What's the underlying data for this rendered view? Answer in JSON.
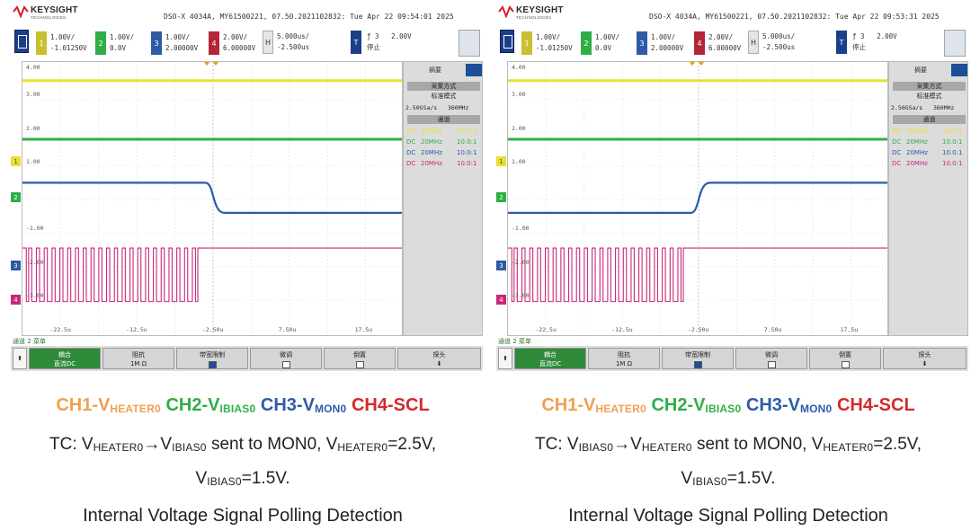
{
  "brand": {
    "name": "KEYSIGHT",
    "sub": "TECHNOLOGIES"
  },
  "colors": {
    "ch1": "#e8e030",
    "ch2": "#2fae48",
    "ch3": "#2e5aa8",
    "ch4": "#c8287a",
    "side_ch1": "#e8e030",
    "cap_ch1": "#f0a050",
    "cap_ch2": "#2fae48",
    "cap_ch3": "#2e5aa8",
    "cap_ch4": "#d42a2a",
    "active_softkey": "#2f8a3a"
  },
  "panels": [
    {
      "model_line": "DSO-X 4034A, MY61500221, 07.50.2021102832: Tue Apr 22 09:54:01 2025",
      "channels": [
        {
          "num": "1",
          "scale": "1.00V/",
          "offset": "-1.01250V"
        },
        {
          "num": "2",
          "scale": "1.00V/",
          "offset": "0.0V"
        },
        {
          "num": "3",
          "scale": "1.00V/",
          "offset": "2.00000V"
        },
        {
          "num": "4",
          "scale": "2.00V/",
          "offset": "6.00000V"
        }
      ],
      "timebase": {
        "label": "H",
        "scale": "5.000us/",
        "delay": "-2.500us"
      },
      "trigger": {
        "label": "T",
        "source": "3",
        "level": "2.00V",
        "status": "停止"
      },
      "y_labels": [
        "4.00",
        "3.00",
        "2.00",
        "1.00",
        "",
        "-1.00",
        "-2.00",
        "-3.00"
      ],
      "x_labels": [
        "-22.5u",
        "-12.5u",
        "-2.50u",
        "7.50u",
        "17.5u"
      ],
      "side": {
        "tab": "摘要",
        "acq_header": "采集方式",
        "acq_mode": "标准模式",
        "rate": "2.50GSa/s",
        "bw": "360MHz",
        "chan_header": "通道",
        "rows": [
          {
            "coupling": "DC",
            "bw": "20MHz",
            "ratio": "10.0:1"
          },
          {
            "coupling": "DC",
            "bw": "20MHz",
            "ratio": "10.0:1"
          },
          {
            "coupling": "DC",
            "bw": "20MHz",
            "ratio": "10.0:1"
          },
          {
            "coupling": "DC",
            "bw": "20MHz",
            "ratio": "10.0:1"
          }
        ]
      },
      "status_text": "通道 2 菜单",
      "softkeys": [
        {
          "l1": "耦合",
          "l2": "直流DC"
        },
        {
          "l1": "阻抗",
          "l2": "1M Ω"
        },
        {
          "l1": "带宽限制",
          "l2": ""
        },
        {
          "l1": "微调",
          "l2": ""
        },
        {
          "l1": "倒置",
          "l2": ""
        },
        {
          "l1": "探头",
          "l2": ""
        }
      ],
      "waves": {
        "ch3_direction": "falling",
        "ch3_high": 0.5,
        "ch3_low": -0.4,
        "ch3_edge_time": -3.5,
        "ch4_burst_start": -27.0,
        "ch4_burst_end": -4.5
      },
      "caption": {
        "tc_line1": [
          "TC: V",
          "HEATER0",
          "→V",
          "IBIAS0",
          " sent to MON0, V",
          "HEATER0",
          "=2.5V,"
        ],
        "tc_line2": [
          "V",
          "IBIAS0",
          "=1.5V."
        ]
      }
    },
    {
      "model_line": "DSO-X 4034A, MY61500221, 07.50.2021102832: Tue Apr 22 09:53:31 2025",
      "channels": [
        {
          "num": "1",
          "scale": "1.00V/",
          "offset": "-1.01250V"
        },
        {
          "num": "2",
          "scale": "1.00V/",
          "offset": "0.0V"
        },
        {
          "num": "3",
          "scale": "1.00V/",
          "offset": "2.00000V"
        },
        {
          "num": "4",
          "scale": "2.00V/",
          "offset": "6.00000V"
        }
      ],
      "timebase": {
        "label": "H",
        "scale": "5.000us/",
        "delay": "-2.500us"
      },
      "trigger": {
        "label": "T",
        "source": "3",
        "level": "2.00V",
        "status": "停止"
      },
      "y_labels": [
        "4.00",
        "3.00",
        "2.00",
        "1.00",
        "",
        "-1.00",
        "-2.00",
        "-3.00"
      ],
      "x_labels": [
        "-22.5u",
        "-12.5u",
        "-2.50u",
        "7.50u",
        "17.5u"
      ],
      "side": {
        "tab": "摘要",
        "acq_header": "采集方式",
        "acq_mode": "标准模式",
        "rate": "2.50GSa/s",
        "bw": "360MHz",
        "chan_header": "通道",
        "rows": [
          {
            "coupling": "DC",
            "bw": "20MHz",
            "ratio": "10.0:1"
          },
          {
            "coupling": "DC",
            "bw": "20MHz",
            "ratio": "10.0:1"
          },
          {
            "coupling": "DC",
            "bw": "20MHz",
            "ratio": "10.0:1"
          },
          {
            "coupling": "DC",
            "bw": "20MHz",
            "ratio": "10.0:1"
          }
        ]
      },
      "status_text": "通道 2 菜单",
      "softkeys": [
        {
          "l1": "耦合",
          "l2": "直流DC"
        },
        {
          "l1": "阻抗",
          "l2": "1M Ω"
        },
        {
          "l1": "带宽限制",
          "l2": ""
        },
        {
          "l1": "微调",
          "l2": ""
        },
        {
          "l1": "倒置",
          "l2": ""
        },
        {
          "l1": "探头",
          "l2": ""
        }
      ],
      "waves": {
        "ch3_direction": "rising",
        "ch3_high": 0.5,
        "ch3_low": -0.4,
        "ch3_edge_time": -3.5,
        "ch4_burst_start": -27.0,
        "ch4_burst_end": -4.5
      },
      "caption": {
        "tc_line1": [
          "TC: V",
          "IBIAS0",
          "→V",
          "HEATER0",
          " sent to MON0, V",
          "HEATER0",
          "=2.5V,"
        ],
        "tc_line2": [
          "V",
          "IBIAS0",
          "=1.5V."
        ]
      }
    }
  ],
  "legend": {
    "ch1": [
      "CH1-V",
      "HEATER0"
    ],
    "ch2": [
      "CH2-V",
      "IBIAS0"
    ],
    "ch3": [
      "CH3-V",
      "MON0"
    ],
    "ch4": "CH4-SCL"
  },
  "title": "Internal Voltage Signal Polling Detection"
}
